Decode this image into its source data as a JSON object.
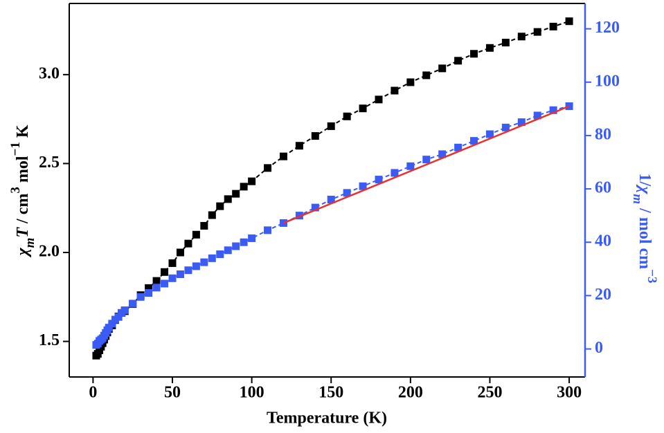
{
  "chart_data": {
    "type": "line",
    "xlabel": "Temperature (K)",
    "ylabel": [
      {
        "text": "χ",
        "italic": true
      },
      {
        "text": "m",
        "italic": true,
        "shift": "sub"
      },
      {
        "text": "T",
        "italic": true
      },
      {
        "text": " / cm"
      },
      {
        "text": "3",
        "shift": "sup"
      },
      {
        "text": " mol"
      },
      {
        "text": "−1",
        "shift": "sup"
      },
      {
        "text": " K"
      }
    ],
    "y2label": [
      {
        "text": "1/"
      },
      {
        "text": "χ",
        "italic": true
      },
      {
        "text": "m",
        "italic": true,
        "shift": "sub"
      },
      {
        "text": " / mol cm"
      },
      {
        "text": "−3",
        "shift": "sup"
      }
    ],
    "xlim": [
      -15,
      310
    ],
    "xticks": [
      0,
      50,
      100,
      150,
      200,
      250,
      300
    ],
    "ylim": [
      1.3,
      3.4
    ],
    "yticks": [
      1.5,
      {
        "value": 2.0,
        "label": "2.0"
      },
      2.5,
      {
        "value": 3.0,
        "label": "3.0"
      }
    ],
    "y2lim": [
      -10.5,
      129.5
    ],
    "y2ticks": [
      0,
      20,
      40,
      60,
      80,
      100,
      120
    ],
    "y2color": "#3b5bf5",
    "series": [
      {
        "color": "#000000",
        "marker": "square",
        "linestyle": "dashed",
        "x": [
          2,
          3,
          4,
          5,
          6,
          7,
          8,
          9,
          10,
          12,
          14,
          16,
          18,
          20,
          25,
          30,
          35,
          40,
          45,
          50,
          55,
          60,
          65,
          70,
          75,
          80,
          85,
          90,
          95,
          100,
          110,
          120,
          130,
          140,
          150,
          160,
          170,
          180,
          190,
          200,
          210,
          220,
          230,
          240,
          250,
          260,
          270,
          280,
          290,
          300
        ],
        "values": [
          1.42,
          1.43,
          1.45,
          1.47,
          1.49,
          1.51,
          1.53,
          1.55,
          1.57,
          1.59,
          1.62,
          1.64,
          1.66,
          1.67,
          1.71,
          1.76,
          1.8,
          1.84,
          1.89,
          1.94,
          2.0,
          2.05,
          2.1,
          2.15,
          2.21,
          2.26,
          2.3,
          2.33,
          2.37,
          2.4,
          2.475,
          2.54,
          2.6,
          2.655,
          2.71,
          2.765,
          2.81,
          2.86,
          2.91,
          2.957,
          2.996,
          3.035,
          3.078,
          3.117,
          3.15,
          3.18,
          3.214,
          3.24,
          3.27,
          3.3
        ]
      },
      {
        "color": "#3b5bf5",
        "marker": "square",
        "linestyle": "dashed",
        "axis": "y2",
        "x": [
          2,
          3,
          4,
          5,
          6,
          7,
          8,
          9,
          10,
          12,
          14,
          16,
          18,
          20,
          25,
          30,
          35,
          40,
          45,
          50,
          55,
          60,
          65,
          70,
          75,
          80,
          85,
          90,
          95,
          100,
          110,
          120,
          130,
          140,
          150,
          160,
          170,
          180,
          190,
          200,
          210,
          220,
          230,
          240,
          250,
          260,
          270,
          280,
          290,
          300
        ],
        "values": [
          1.5,
          2,
          3,
          3.5,
          4,
          5,
          6,
          7,
          8,
          9.5,
          11,
          12,
          13.5,
          14.5,
          17,
          19.5,
          21,
          23,
          24.5,
          26.5,
          28,
          29.5,
          31,
          32.5,
          34,
          35.5,
          37,
          38.5,
          40,
          41.5,
          44.5,
          47.2,
          50,
          53,
          56,
          58.5,
          61,
          63.5,
          66,
          68.5,
          71,
          73,
          75.5,
          78,
          80.5,
          83,
          85,
          87.5,
          89.5,
          91
        ]
      },
      {
        "color": "#e8302f",
        "marker": "none",
        "linestyle": "solid",
        "axis": "y2",
        "x": [
          120,
          300
        ],
        "values": [
          47.2,
          91
        ]
      }
    ]
  }
}
